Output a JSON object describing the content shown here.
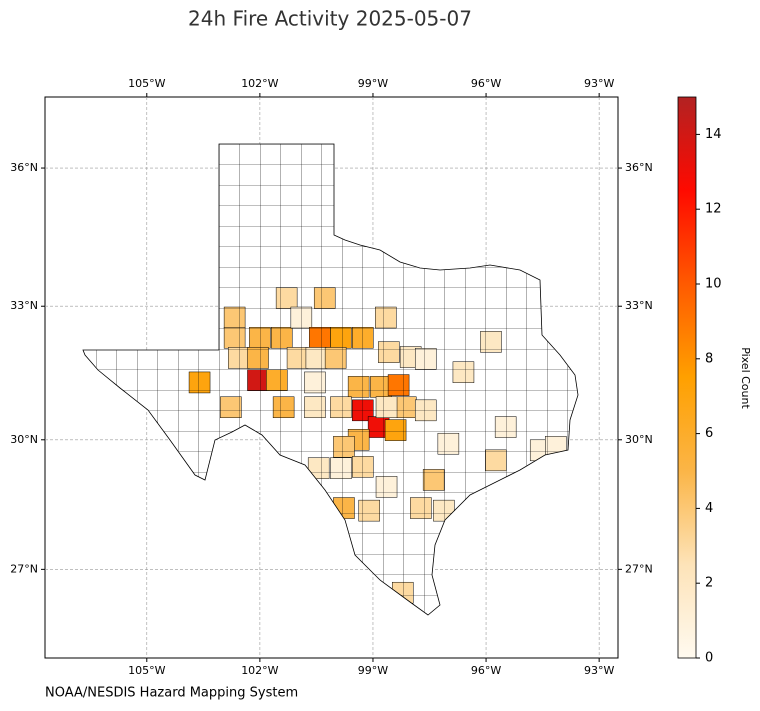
{
  "chart_data": {
    "type": "choropleth",
    "title": "24h Fire Activity 2025-05-07",
    "source": "NOAA/NESDIS Hazard Mapping System",
    "colorbar_label": "Pixel Count",
    "projection": "mercator",
    "xlim": [
      -107.7,
      -92.5
    ],
    "ylim": [
      24.9,
      37.5
    ],
    "xticks": [
      {
        "value": -105,
        "label": "105°W"
      },
      {
        "value": -102,
        "label": "102°W"
      },
      {
        "value": -99,
        "label": "99°W"
      },
      {
        "value": -96,
        "label": "96°W"
      },
      {
        "value": -93,
        "label": "93°W"
      }
    ],
    "yticks": [
      {
        "value": 27,
        "label": "27°N"
      },
      {
        "value": 30,
        "label": "30°N"
      },
      {
        "value": 33,
        "label": "33°N"
      },
      {
        "value": 36,
        "label": "36°N"
      }
    ],
    "grid": true,
    "clim": [
      0,
      15
    ],
    "cticks": [
      0,
      2,
      4,
      6,
      8,
      10,
      12,
      14
    ],
    "colormap": [
      "#fffaf0",
      "#fde3b8",
      "#fbb547",
      "#ffa000",
      "#ff5a00",
      "#ff0a00",
      "#b22222"
    ],
    "regions": [
      {
        "lon": -101.29,
        "lat": 33.18,
        "value": 3
      },
      {
        "lon": -100.28,
        "lat": 33.18,
        "value": 4
      },
      {
        "lon": -102.67,
        "lat": 32.75,
        "value": 4
      },
      {
        "lon": -102.67,
        "lat": 32.3,
        "value": 4
      },
      {
        "lon": -102.0,
        "lat": 32.3,
        "value": 5
      },
      {
        "lon": -101.42,
        "lat": 32.3,
        "value": 5
      },
      {
        "lon": -100.9,
        "lat": 32.75,
        "value": 1
      },
      {
        "lon": -100.41,
        "lat": 32.3,
        "value": 9
      },
      {
        "lon": -99.85,
        "lat": 32.3,
        "value": 7
      },
      {
        "lon": -99.27,
        "lat": 32.3,
        "value": 6
      },
      {
        "lon": -98.66,
        "lat": 32.75,
        "value": 3
      },
      {
        "lon": -102.56,
        "lat": 31.85,
        "value": 3
      },
      {
        "lon": -102.05,
        "lat": 31.85,
        "value": 5
      },
      {
        "lon": -102.05,
        "lat": 31.35,
        "value": 14
      },
      {
        "lon": -101.55,
        "lat": 31.35,
        "value": 6
      },
      {
        "lon": -101.0,
        "lat": 31.85,
        "value": 3
      },
      {
        "lon": -100.5,
        "lat": 31.85,
        "value": 2
      },
      {
        "lon": -99.99,
        "lat": 31.85,
        "value": 4
      },
      {
        "lon": -103.6,
        "lat": 31.3,
        "value": 7
      },
      {
        "lon": -102.77,
        "lat": 30.74,
        "value": 4
      },
      {
        "lon": -101.37,
        "lat": 30.74,
        "value": 5
      },
      {
        "lon": -100.54,
        "lat": 31.3,
        "value": 1
      },
      {
        "lon": -100.54,
        "lat": 30.74,
        "value": 2
      },
      {
        "lon": -99.38,
        "lat": 31.2,
        "value": 5
      },
      {
        "lon": -98.79,
        "lat": 31.2,
        "value": 5
      },
      {
        "lon": -98.32,
        "lat": 31.24,
        "value": 9
      },
      {
        "lon": -99.27,
        "lat": 30.67,
        "value": 13
      },
      {
        "lon": -98.85,
        "lat": 30.29,
        "value": 13
      },
      {
        "lon": -98.4,
        "lat": 30.22,
        "value": 7
      },
      {
        "lon": -98.13,
        "lat": 30.74,
        "value": 4
      },
      {
        "lon": -98.64,
        "lat": 30.74,
        "value": 2
      },
      {
        "lon": -99.85,
        "lat": 30.74,
        "value": 3
      },
      {
        "lon": -99.38,
        "lat": 30.0,
        "value": 5
      },
      {
        "lon": -99.77,
        "lat": 29.84,
        "value": 4
      },
      {
        "lon": -99.27,
        "lat": 29.38,
        "value": 3
      },
      {
        "lon": -100.44,
        "lat": 29.35,
        "value": 2
      },
      {
        "lon": -99.85,
        "lat": 29.35,
        "value": 1
      },
      {
        "lon": -99.77,
        "lat": 28.43,
        "value": 5
      },
      {
        "lon": -99.1,
        "lat": 28.37,
        "value": 3
      },
      {
        "lon": -98.58,
        "lat": 31.98,
        "value": 3
      },
      {
        "lon": -98.0,
        "lat": 31.87,
        "value": 2
      },
      {
        "lon": -97.6,
        "lat": 30.67,
        "value": 2
      },
      {
        "lon": -97.6,
        "lat": 31.83,
        "value": 1
      },
      {
        "lon": -96.6,
        "lat": 31.53,
        "value": 2
      },
      {
        "lon": -95.87,
        "lat": 32.21,
        "value": 2
      },
      {
        "lon": -95.48,
        "lat": 30.29,
        "value": 1
      },
      {
        "lon": -95.74,
        "lat": 29.53,
        "value": 3
      },
      {
        "lon": -94.55,
        "lat": 29.76,
        "value": 1
      },
      {
        "lon": -94.15,
        "lat": 29.84,
        "value": 1
      },
      {
        "lon": -97.39,
        "lat": 29.08,
        "value": 4
      },
      {
        "lon": -97.12,
        "lat": 28.37,
        "value": 2
      },
      {
        "lon": -97.73,
        "lat": 28.43,
        "value": 3
      },
      {
        "lon": -98.21,
        "lat": 26.45,
        "value": 3
      },
      {
        "lon": -97.0,
        "lat": 29.91,
        "value": 1
      },
      {
        "lon": -98.64,
        "lat": 28.92,
        "value": 1
      }
    ]
  }
}
